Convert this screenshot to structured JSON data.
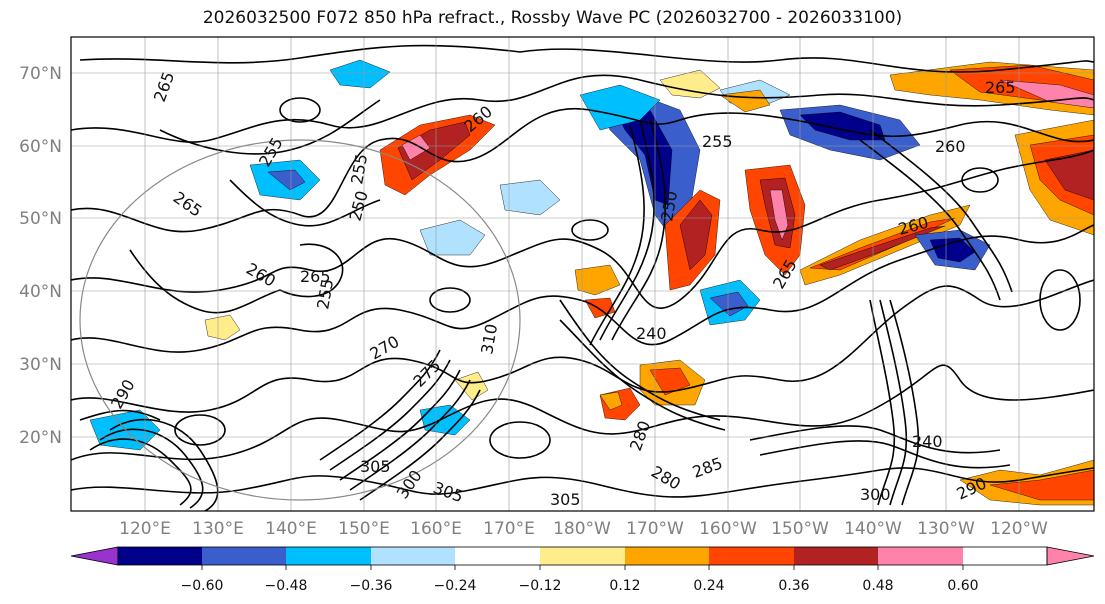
{
  "title": "2026032500 F072 850 hPa refract., Rossby Wave PC (2026032700 - 2026033100)",
  "lat_labels": [
    "70°N",
    "60°N",
    "50°N",
    "40°N",
    "30°N",
    "20°N"
  ],
  "lon_labels": [
    "120°E",
    "130°E",
    "140°E",
    "150°E",
    "160°E",
    "170°E",
    "180°W",
    "170°W",
    "160°W",
    "150°W",
    "140°W",
    "130°W",
    "120°W"
  ],
  "colorbar": {
    "levels": [
      "−0.60",
      "−0.48",
      "−0.36",
      "−0.24",
      "−0.12",
      "0.12",
      "0.24",
      "0.36",
      "0.48",
      "0.60"
    ],
    "colors": [
      "#9a32cd",
      "#00008b",
      "#3a5fcd",
      "#00bfff",
      "#b0e2ff",
      "#ffffff",
      "#ffec8b",
      "#ffa500",
      "#ff4500",
      "#b22222",
      "#ff82ab"
    ]
  },
  "contour_labels": [
    "265",
    "265",
    "265",
    "265",
    "260",
    "260",
    "260",
    "260",
    "255",
    "255",
    "255",
    "250",
    "250",
    "240",
    "240",
    "270",
    "275",
    "280",
    "280",
    "285",
    "290",
    "290",
    "300",
    "300",
    "305",
    "305",
    "305",
    "310",
    "265",
    "255"
  ],
  "colors": {
    "title": "#111111",
    "axis_label": "#808080",
    "contour": "#000000",
    "gridline": "#999999"
  }
}
